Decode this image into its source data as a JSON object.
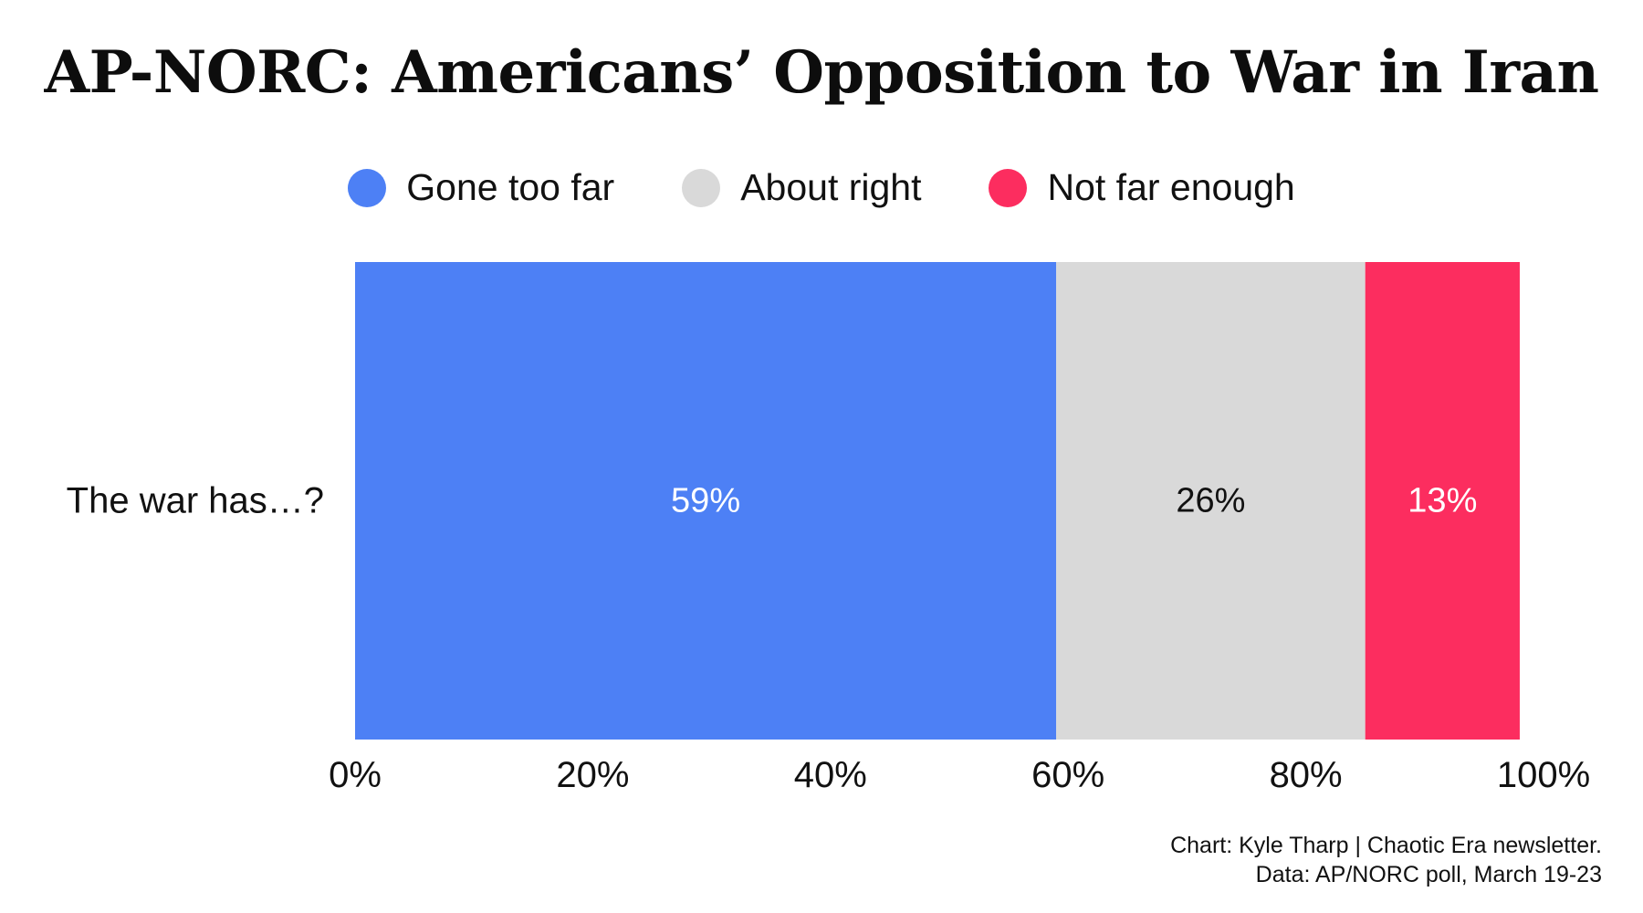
{
  "colors": {
    "gone_too_far": "#4d80f5",
    "about_right": "#d9d9d9",
    "not_far_enough": "#fc2d5f",
    "axis_text": "#111111"
  },
  "chart_data": {
    "type": "bar",
    "orientation": "horizontal",
    "stacked": true,
    "title": "AP-NORC: Americans’ Opposition to War in Iran",
    "categories": [
      "The war has…?"
    ],
    "series": [
      {
        "name": "Gone too far",
        "values": [
          59
        ],
        "label": "59%",
        "color": "#4d80f5",
        "label_color": "#ffffff"
      },
      {
        "name": "About right",
        "values": [
          26
        ],
        "label": "26%",
        "color": "#d9d9d9",
        "label_color": "#111111"
      },
      {
        "name": "Not far enough",
        "values": [
          13
        ],
        "label": "13%",
        "color": "#fc2d5f",
        "label_color": "#ffffff"
      }
    ],
    "xlim": [
      0,
      100
    ],
    "xticks": [
      0,
      20,
      40,
      60,
      80,
      100
    ],
    "xtick_labels": [
      "0%",
      "20%",
      "40%",
      "60%",
      "80%",
      "100%"
    ],
    "grid": false,
    "legend_position": "top-center"
  },
  "footnote": {
    "credit": "Chart: Kyle Tharp | Chaotic Era newsletter.",
    "source": "Data: AP/NORC poll, March 19-23"
  }
}
